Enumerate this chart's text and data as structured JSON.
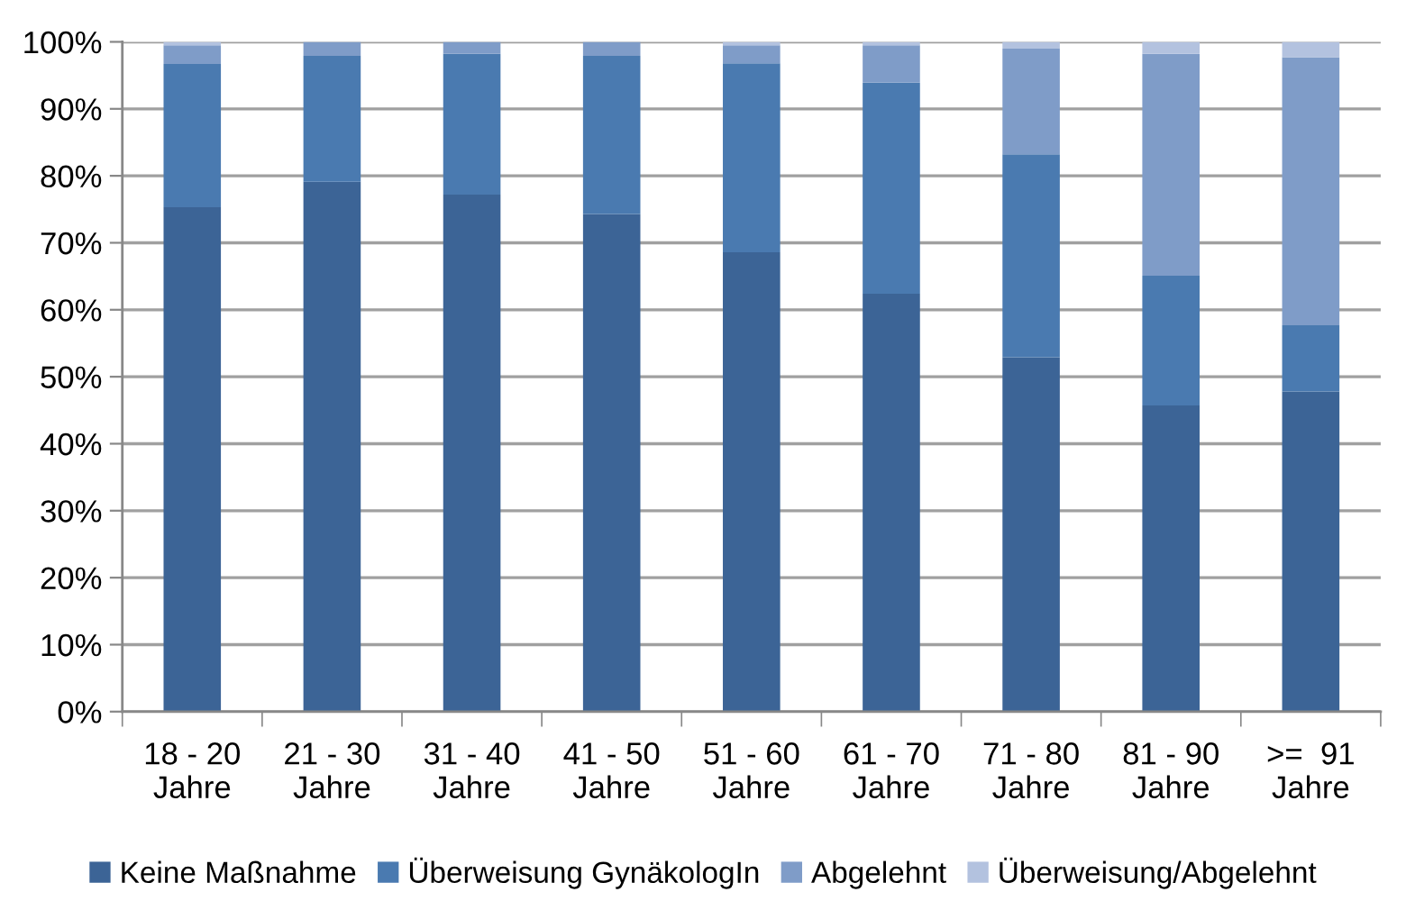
{
  "chart_data": {
    "type": "bar",
    "stacked": true,
    "categories": [
      "18 - 20\nJahre",
      "21 - 30\nJahre",
      "31 - 40\nJahre",
      "41 - 50\nJahre",
      "51 - 60\nJahre",
      "61 - 70\nJahre",
      "71 - 80\nJahre",
      "81 - 90\nJahre",
      ">=  91\nJahre"
    ],
    "series": [
      {
        "name": "Keine Maßnahme",
        "color": "#3c6496",
        "values": [
          75.3,
          79.1,
          77.2,
          74.3,
          68.6,
          62.4,
          52.9,
          45.7,
          47.8
        ]
      },
      {
        "name": "Überweisung GynäkologIn",
        "color": "#4a7ab0",
        "values": [
          21.4,
          18.8,
          21.0,
          23.6,
          28.2,
          31.5,
          30.3,
          19.4,
          9.9
        ]
      },
      {
        "name": "Abgelehnt",
        "color": "#7f9cc8",
        "values": [
          2.8,
          2.1,
          1.8,
          2.1,
          2.7,
          5.6,
          15.8,
          33.1,
          40.0
        ]
      },
      {
        "name": "Überweisung/Abgelehnt",
        "color": "#b3c2df",
        "values": [
          0.5,
          null,
          null,
          null,
          0.5,
          0.5,
          1.0,
          1.8,
          2.3
        ]
      }
    ],
    "ylim": [
      0,
      100
    ],
    "yticks": [
      {
        "value": 0,
        "label": "0%"
      },
      {
        "value": 10,
        "label": "10%"
      },
      {
        "value": 20,
        "label": "20%"
      },
      {
        "value": 30,
        "label": "30%"
      },
      {
        "value": 40,
        "label": "40%"
      },
      {
        "value": 50,
        "label": "50%"
      },
      {
        "value": 60,
        "label": "60%"
      },
      {
        "value": 70,
        "label": "70%"
      },
      {
        "value": 80,
        "label": "80%"
      },
      {
        "value": 90,
        "label": "90%"
      },
      {
        "value": 100,
        "label": "100%"
      }
    ],
    "grid": "y",
    "legend": "bottom"
  }
}
